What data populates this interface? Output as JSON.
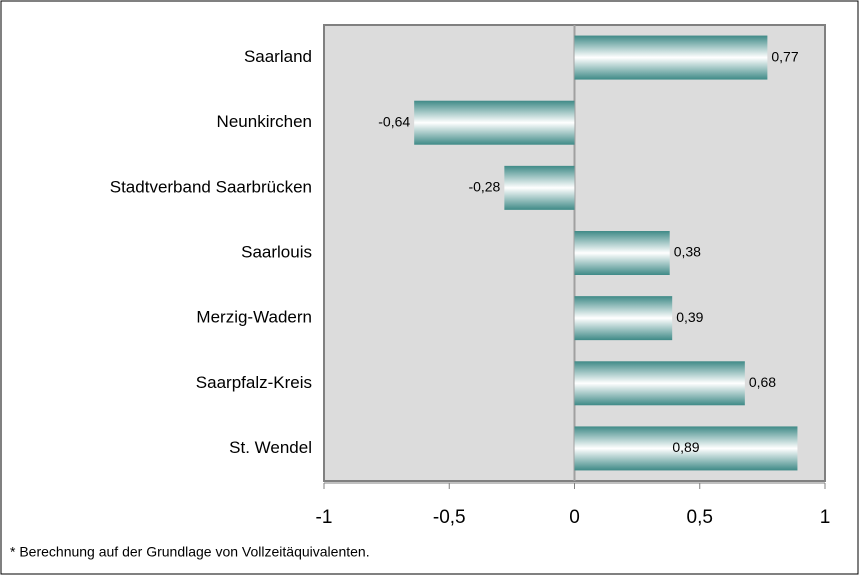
{
  "chart_data": {
    "type": "bar",
    "orientation": "horizontal",
    "categories": [
      "Saarland",
      "Neunkirchen",
      "Stadtverband Saarbrücken",
      "Saarlouis",
      "Merzig-Wadern",
      "Saarpfalz-Kreis",
      "St. Wendel"
    ],
    "values": [
      0.77,
      -0.64,
      -0.28,
      0.38,
      0.39,
      0.68,
      0.89
    ],
    "value_labels": [
      "0,77",
      "-0,64",
      "-0,28",
      "0,38",
      "0,39",
      "0,68",
      "0,89"
    ],
    "color": "#3f8a87",
    "xlim": [
      -1,
      1
    ],
    "xticks": [
      -1,
      {
        "value": -0.5,
        "label": "-0,5"
      },
      0,
      {
        "value": 0.5,
        "label": "0,5"
      },
      1
    ],
    "note": "* Berechnung auf der Grundlage von Vollzeitäquivalenten."
  }
}
